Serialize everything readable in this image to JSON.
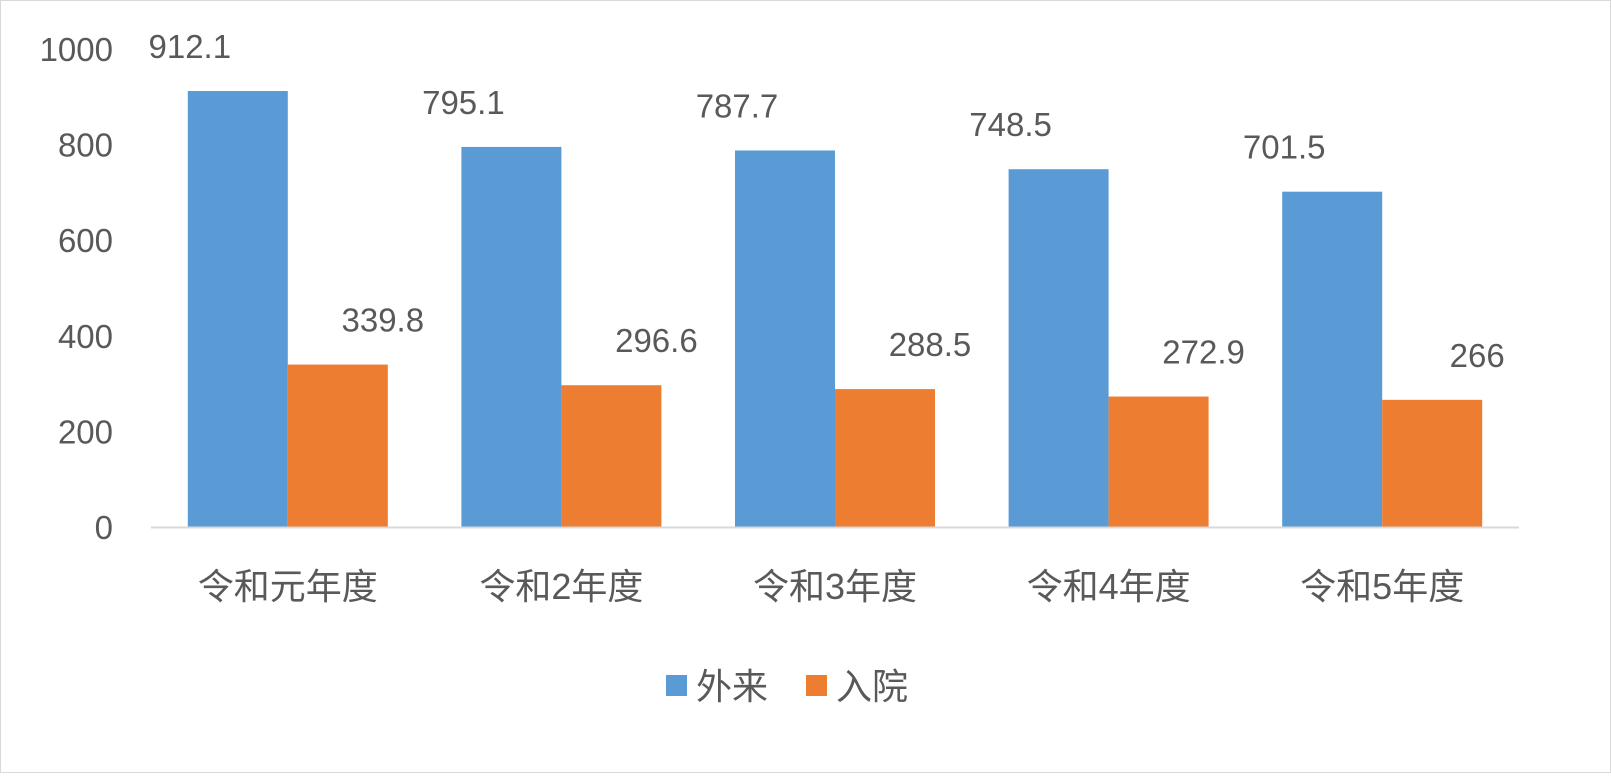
{
  "chart_data": {
    "type": "bar",
    "categories": [
      "令和元年度",
      "令和2年度",
      "令和3年度",
      "令和4年度",
      "令和5年度"
    ],
    "series": [
      {
        "name": "外来",
        "values": [
          912.1,
          795.1,
          787.7,
          748.5,
          701.5
        ],
        "labels": [
          "912.1",
          "795.1",
          "787.7",
          "748.5",
          "701.5"
        ],
        "color": "#5b9bd5"
      },
      {
        "name": "入院",
        "values": [
          339.8,
          296.6,
          288.5,
          272.9,
          266
        ],
        "labels": [
          "339.8",
          "296.6",
          "288.5",
          "272.9",
          "266"
        ],
        "color": "#ed7d31"
      }
    ],
    "ylim": [
      0,
      1000
    ],
    "yticks": [
      0,
      200,
      400,
      600,
      800,
      1000
    ],
    "title": "",
    "xlabel": "",
    "ylabel": "",
    "grid": false,
    "legend_position": "bottom",
    "data_labels": true
  }
}
